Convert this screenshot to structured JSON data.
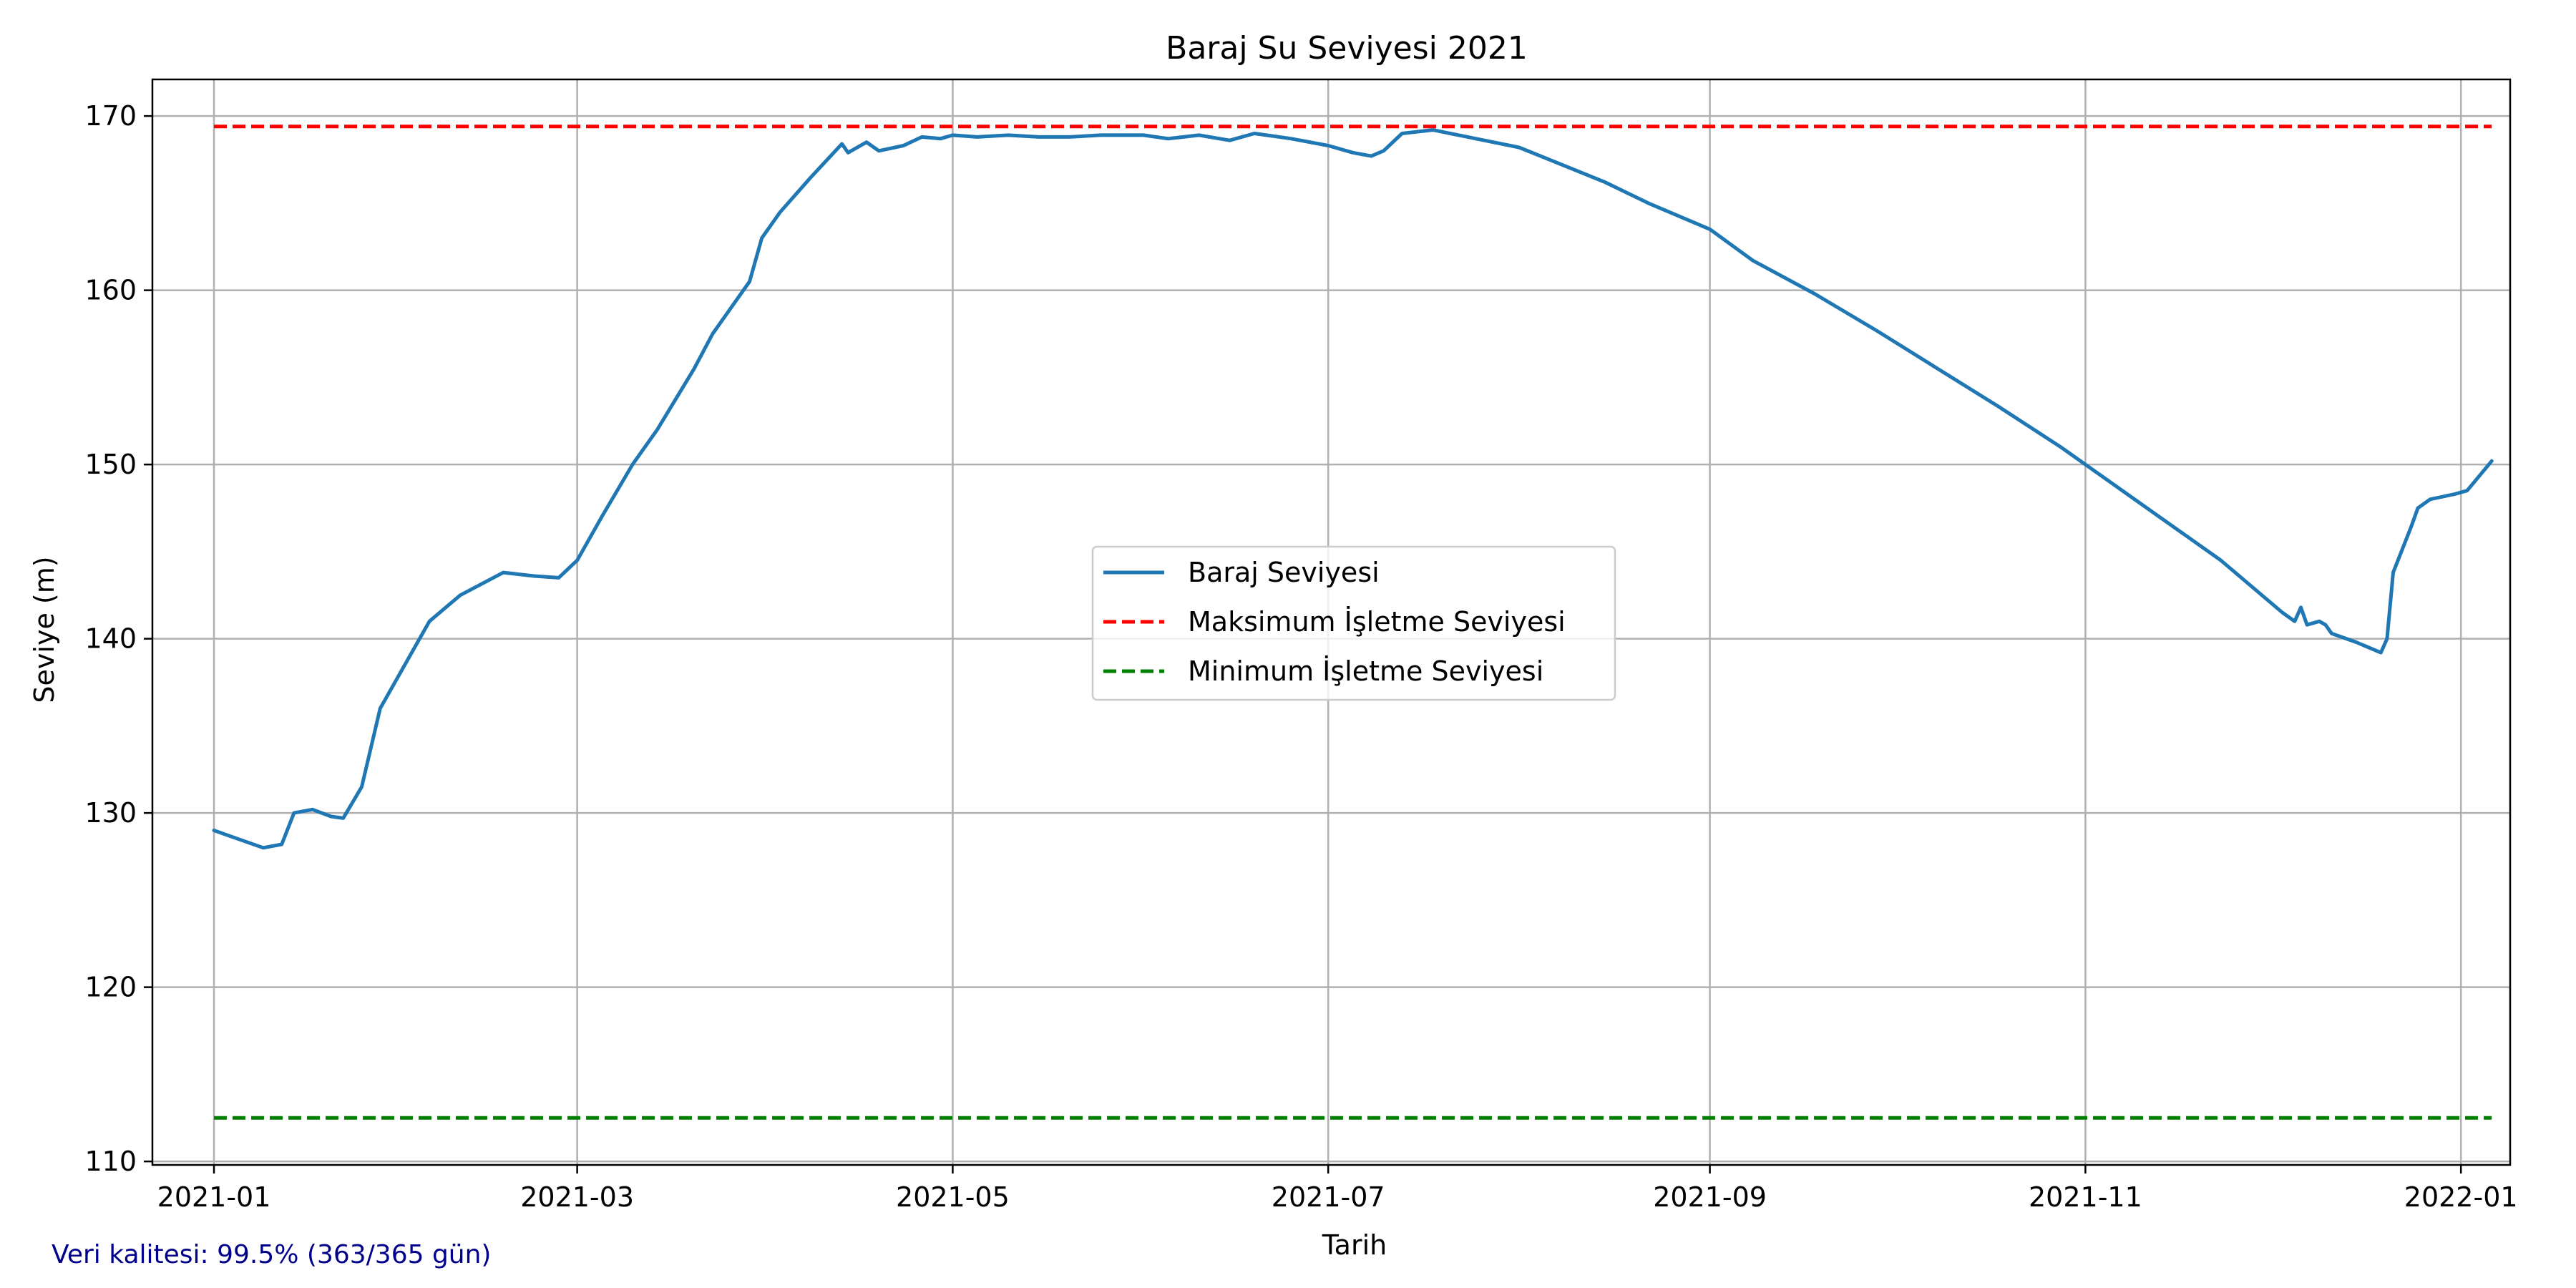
{
  "chart_data": {
    "type": "line",
    "title": "Baraj Su Seviyesi 2021",
    "xlabel": "Tarih",
    "ylabel": "Seviye (m)",
    "x_ticks": [
      "2021-01",
      "2021-03",
      "2021-05",
      "2021-07",
      "2021-09",
      "2021-11",
      "2022-01"
    ],
    "y_ticks": [
      110,
      120,
      130,
      140,
      150,
      160,
      170
    ],
    "xlim": [
      "2020-12-22",
      "2022-01-09"
    ],
    "ylim": [
      109.8,
      172.1
    ],
    "grid": true,
    "legend_position": "center",
    "series": [
      {
        "name": "Baraj Seviyesi",
        "style": "solid",
        "color": "#1f77b4",
        "points": [
          [
            "2021-01-01",
            129.0
          ],
          [
            "2021-01-05",
            128.5
          ],
          [
            "2021-01-09",
            128.0
          ],
          [
            "2021-01-12",
            128.2
          ],
          [
            "2021-01-14",
            130.0
          ],
          [
            "2021-01-17",
            130.2
          ],
          [
            "2021-01-20",
            129.8
          ],
          [
            "2021-01-22",
            129.7
          ],
          [
            "2021-01-25",
            131.5
          ],
          [
            "2021-01-28",
            136.0
          ],
          [
            "2021-02-01",
            138.5
          ],
          [
            "2021-02-05",
            141.0
          ],
          [
            "2021-02-10",
            142.5
          ],
          [
            "2021-02-17",
            143.8
          ],
          [
            "2021-02-22",
            143.6
          ],
          [
            "2021-02-26",
            143.5
          ],
          [
            "2021-03-01",
            144.5
          ],
          [
            "2021-03-05",
            147.0
          ],
          [
            "2021-03-10",
            150.0
          ],
          [
            "2021-03-14",
            152.0
          ],
          [
            "2021-03-20",
            155.5
          ],
          [
            "2021-03-23",
            157.5
          ],
          [
            "2021-03-29",
            160.5
          ],
          [
            "2021-03-31",
            163.0
          ],
          [
            "2021-04-03",
            164.5
          ],
          [
            "2021-04-08",
            166.5
          ],
          [
            "2021-04-13",
            168.4
          ],
          [
            "2021-04-14",
            167.9
          ],
          [
            "2021-04-17",
            168.5
          ],
          [
            "2021-04-19",
            168.0
          ],
          [
            "2021-04-23",
            168.3
          ],
          [
            "2021-04-26",
            168.8
          ],
          [
            "2021-04-29",
            168.7
          ],
          [
            "2021-05-01",
            168.9
          ],
          [
            "2021-05-05",
            168.8
          ],
          [
            "2021-05-10",
            168.9
          ],
          [
            "2021-05-15",
            168.8
          ],
          [
            "2021-05-20",
            168.8
          ],
          [
            "2021-05-25",
            168.9
          ],
          [
            "2021-06-01",
            168.9
          ],
          [
            "2021-06-05",
            168.7
          ],
          [
            "2021-06-10",
            168.9
          ],
          [
            "2021-06-15",
            168.6
          ],
          [
            "2021-06-19",
            169.0
          ],
          [
            "2021-06-25",
            168.7
          ],
          [
            "2021-07-01",
            168.3
          ],
          [
            "2021-07-05",
            167.9
          ],
          [
            "2021-07-08",
            167.7
          ],
          [
            "2021-07-10",
            168.0
          ],
          [
            "2021-07-13",
            169.0
          ],
          [
            "2021-07-18",
            169.2
          ],
          [
            "2021-07-25",
            168.7
          ],
          [
            "2021-08-01",
            168.2
          ],
          [
            "2021-08-08",
            167.2
          ],
          [
            "2021-08-15",
            166.2
          ],
          [
            "2021-08-22",
            165.0
          ],
          [
            "2021-09-01",
            163.5
          ],
          [
            "2021-09-08",
            161.7
          ],
          [
            "2021-09-18",
            159.8
          ],
          [
            "2021-09-28",
            157.7
          ],
          [
            "2021-10-08",
            155.5
          ],
          [
            "2021-10-18",
            153.3
          ],
          [
            "2021-10-28",
            151.0
          ],
          [
            "2021-11-07",
            148.5
          ],
          [
            "2021-11-17",
            146.0
          ],
          [
            "2021-11-23",
            144.5
          ],
          [
            "2021-11-28",
            143.0
          ],
          [
            "2021-12-03",
            141.5
          ],
          [
            "2021-12-05",
            141.0
          ],
          [
            "2021-12-06",
            141.8
          ],
          [
            "2021-12-07",
            140.8
          ],
          [
            "2021-12-09",
            141.0
          ],
          [
            "2021-12-10",
            140.8
          ],
          [
            "2021-12-11",
            140.3
          ],
          [
            "2021-12-15",
            139.8
          ],
          [
            "2021-12-19",
            139.2
          ],
          [
            "2021-12-20",
            140.0
          ],
          [
            "2021-12-21",
            143.8
          ],
          [
            "2021-12-24",
            146.5
          ],
          [
            "2021-12-25",
            147.5
          ],
          [
            "2021-12-27",
            148.0
          ],
          [
            "2021-12-31",
            148.3
          ],
          [
            "2022-01-02",
            148.5
          ],
          [
            "2022-01-06",
            150.2
          ]
        ]
      },
      {
        "name": "Maksimum İşletme Seviyesi",
        "style": "dashed",
        "color": "#ff0000",
        "points": [
          [
            "2021-01-01",
            169.4
          ],
          [
            "2022-01-06",
            169.4
          ]
        ]
      },
      {
        "name": "Minimum İşletme Seviyesi",
        "style": "dashed",
        "color": "#008000",
        "points": [
          [
            "2021-01-01",
            112.5
          ],
          [
            "2022-01-06",
            112.5
          ]
        ]
      }
    ]
  },
  "footnote": "Veri kalitesi: 99.5% (363/365 gün)"
}
